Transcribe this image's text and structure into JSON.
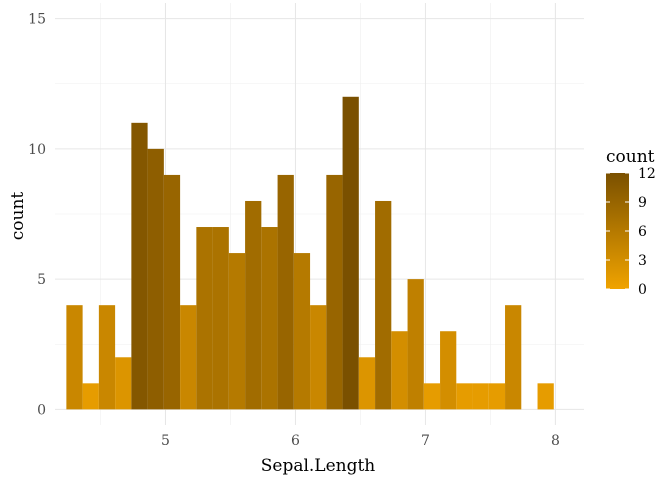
{
  "chart_data": {
    "type": "bar",
    "xlabel": "Sepal.Length",
    "ylabel": "count",
    "xlim": [
      4.15,
      8.22
    ],
    "ylim": [
      -0.6,
      15.6
    ],
    "x_ticks": [
      5,
      6,
      7,
      8
    ],
    "y_ticks": [
      0,
      5,
      10,
      15
    ],
    "bin_width": 0.125,
    "bins": [
      {
        "x": 4.3,
        "count": 4
      },
      {
        "x": 4.425,
        "count": 1
      },
      {
        "x": 4.55,
        "count": 4
      },
      {
        "x": 4.675,
        "count": 2
      },
      {
        "x": 4.8,
        "count": 11
      },
      {
        "x": 4.925,
        "count": 10
      },
      {
        "x": 5.05,
        "count": 9
      },
      {
        "x": 5.175,
        "count": 4
      },
      {
        "x": 5.3,
        "count": 7
      },
      {
        "x": 5.425,
        "count": 7
      },
      {
        "x": 5.55,
        "count": 6
      },
      {
        "x": 5.675,
        "count": 8
      },
      {
        "x": 5.8,
        "count": 7
      },
      {
        "x": 5.925,
        "count": 9
      },
      {
        "x": 6.05,
        "count": 6
      },
      {
        "x": 6.175,
        "count": 4
      },
      {
        "x": 6.3,
        "count": 9
      },
      {
        "x": 6.425,
        "count": 12
      },
      {
        "x": 6.55,
        "count": 2
      },
      {
        "x": 6.675,
        "count": 8
      },
      {
        "x": 6.8,
        "count": 3
      },
      {
        "x": 6.925,
        "count": 5
      },
      {
        "x": 7.05,
        "count": 1
      },
      {
        "x": 7.175,
        "count": 3
      },
      {
        "x": 7.3,
        "count": 1
      },
      {
        "x": 7.425,
        "count": 1
      },
      {
        "x": 7.55,
        "count": 1
      },
      {
        "x": 7.675,
        "count": 4
      },
      {
        "x": 7.8,
        "count": 0
      },
      {
        "x": 7.925,
        "count": 1
      }
    ],
    "grid": true,
    "legend": {
      "title": "count",
      "placement": "right",
      "breaks": [
        12,
        9,
        6,
        3,
        0
      ],
      "color_low": "#f0a300",
      "color_high": "#7a5000"
    }
  }
}
